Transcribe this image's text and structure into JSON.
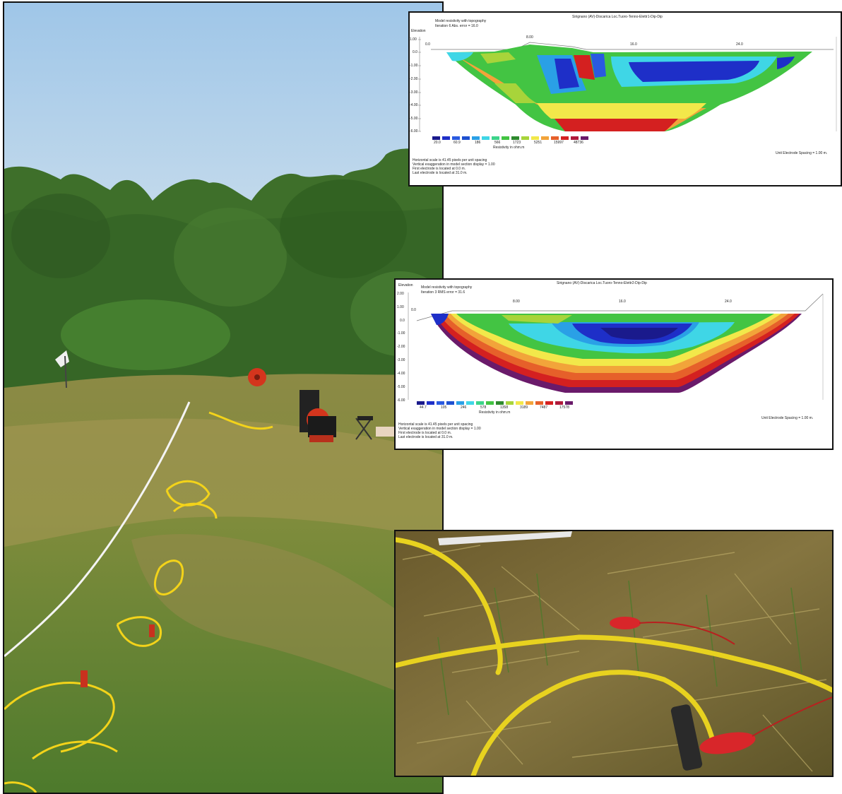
{
  "field_photo": {
    "sky": "#a9cdea",
    "trees": "#3a6e28",
    "grass": "#7e8e3a",
    "dry_grass": "#b09a5a",
    "cable": "#f3d31a",
    "tape": "#f4f4f4",
    "reel": "#d4351d"
  },
  "section_1": {
    "title": "Sirignano (AV)-Discarica Loc.Tuoro-Tenno-Elettr1-Dip-Dip",
    "model_label": "Model resistivity with topography",
    "iteration": "Iteration 6 Abs. error = 16.0",
    "elevation_label": "Elevation",
    "x_ticks": [
      "0.0",
      "8.00",
      "16.0",
      "24.0"
    ],
    "y_ticks": [
      "1.00",
      "0.0",
      "-1.00",
      "-2.00",
      "-3.00",
      "-4.00",
      "-5.00",
      "-6.00"
    ],
    "legend_values": [
      "20.0",
      "60.9",
      "186",
      "566",
      "1723",
      "5251",
      "15997",
      "48736"
    ],
    "legend_unit": "Resistivity in ohm.m",
    "spacing": "Unit Electrode Spacing = 1.00 m.",
    "notes": [
      "Horizontal scale is 41.45 pixels per unit spacing",
      "Vertical exaggeration in model section display = 1.00",
      "First electrode is located at 0.0 m.",
      "Last electrode is located at 31.0 m."
    ]
  },
  "section_2": {
    "title": "Sirignano (AV)-Discarica Loc.Tuoro-Tenno-Elettr2-Dip-Dip",
    "model_label": "Model resistivity with topography",
    "iteration": "Iteration 3 RMS error = 31.6",
    "elevation_label": "Elevation",
    "x_ticks": [
      "0.0",
      "8.00",
      "16.0",
      "24.0"
    ],
    "y_ticks": [
      "2.00",
      "1.00",
      "0.0",
      "-1.00",
      "-2.00",
      "-3.00",
      "-4.00",
      "-5.00",
      "-6.00"
    ],
    "legend_values": [
      "44.7",
      "105",
      "246",
      "578",
      "1358",
      "3189",
      "7487",
      "17578"
    ],
    "legend_unit": "Resistivity in ohm.m",
    "spacing": "Unit Electrode Spacing = 1.00 m.",
    "notes": [
      "Horizontal scale is 41.45 pixels per unit spacing",
      "Vertical exaggeration in model section display = 1.00",
      "First electrode is located at 0.0 m.",
      "Last electrode is located at 31.0 m."
    ]
  },
  "legend_colors": [
    "#1a1a8c",
    "#1e2fc8",
    "#2a5ae0",
    "#2aa0e6",
    "#3fd6e6",
    "#3cd48a",
    "#43c443",
    "#2e8a2e",
    "#a8d43a",
    "#f2e84a",
    "#f2a43a",
    "#e6602a",
    "#d42020",
    "#b01a3a",
    "#6a1a6a"
  ],
  "detail_photo": {
    "grass": "#7a6a35",
    "cable": "#e8d21f",
    "clip": "#d8262a",
    "tape": "#e8e8e8"
  }
}
